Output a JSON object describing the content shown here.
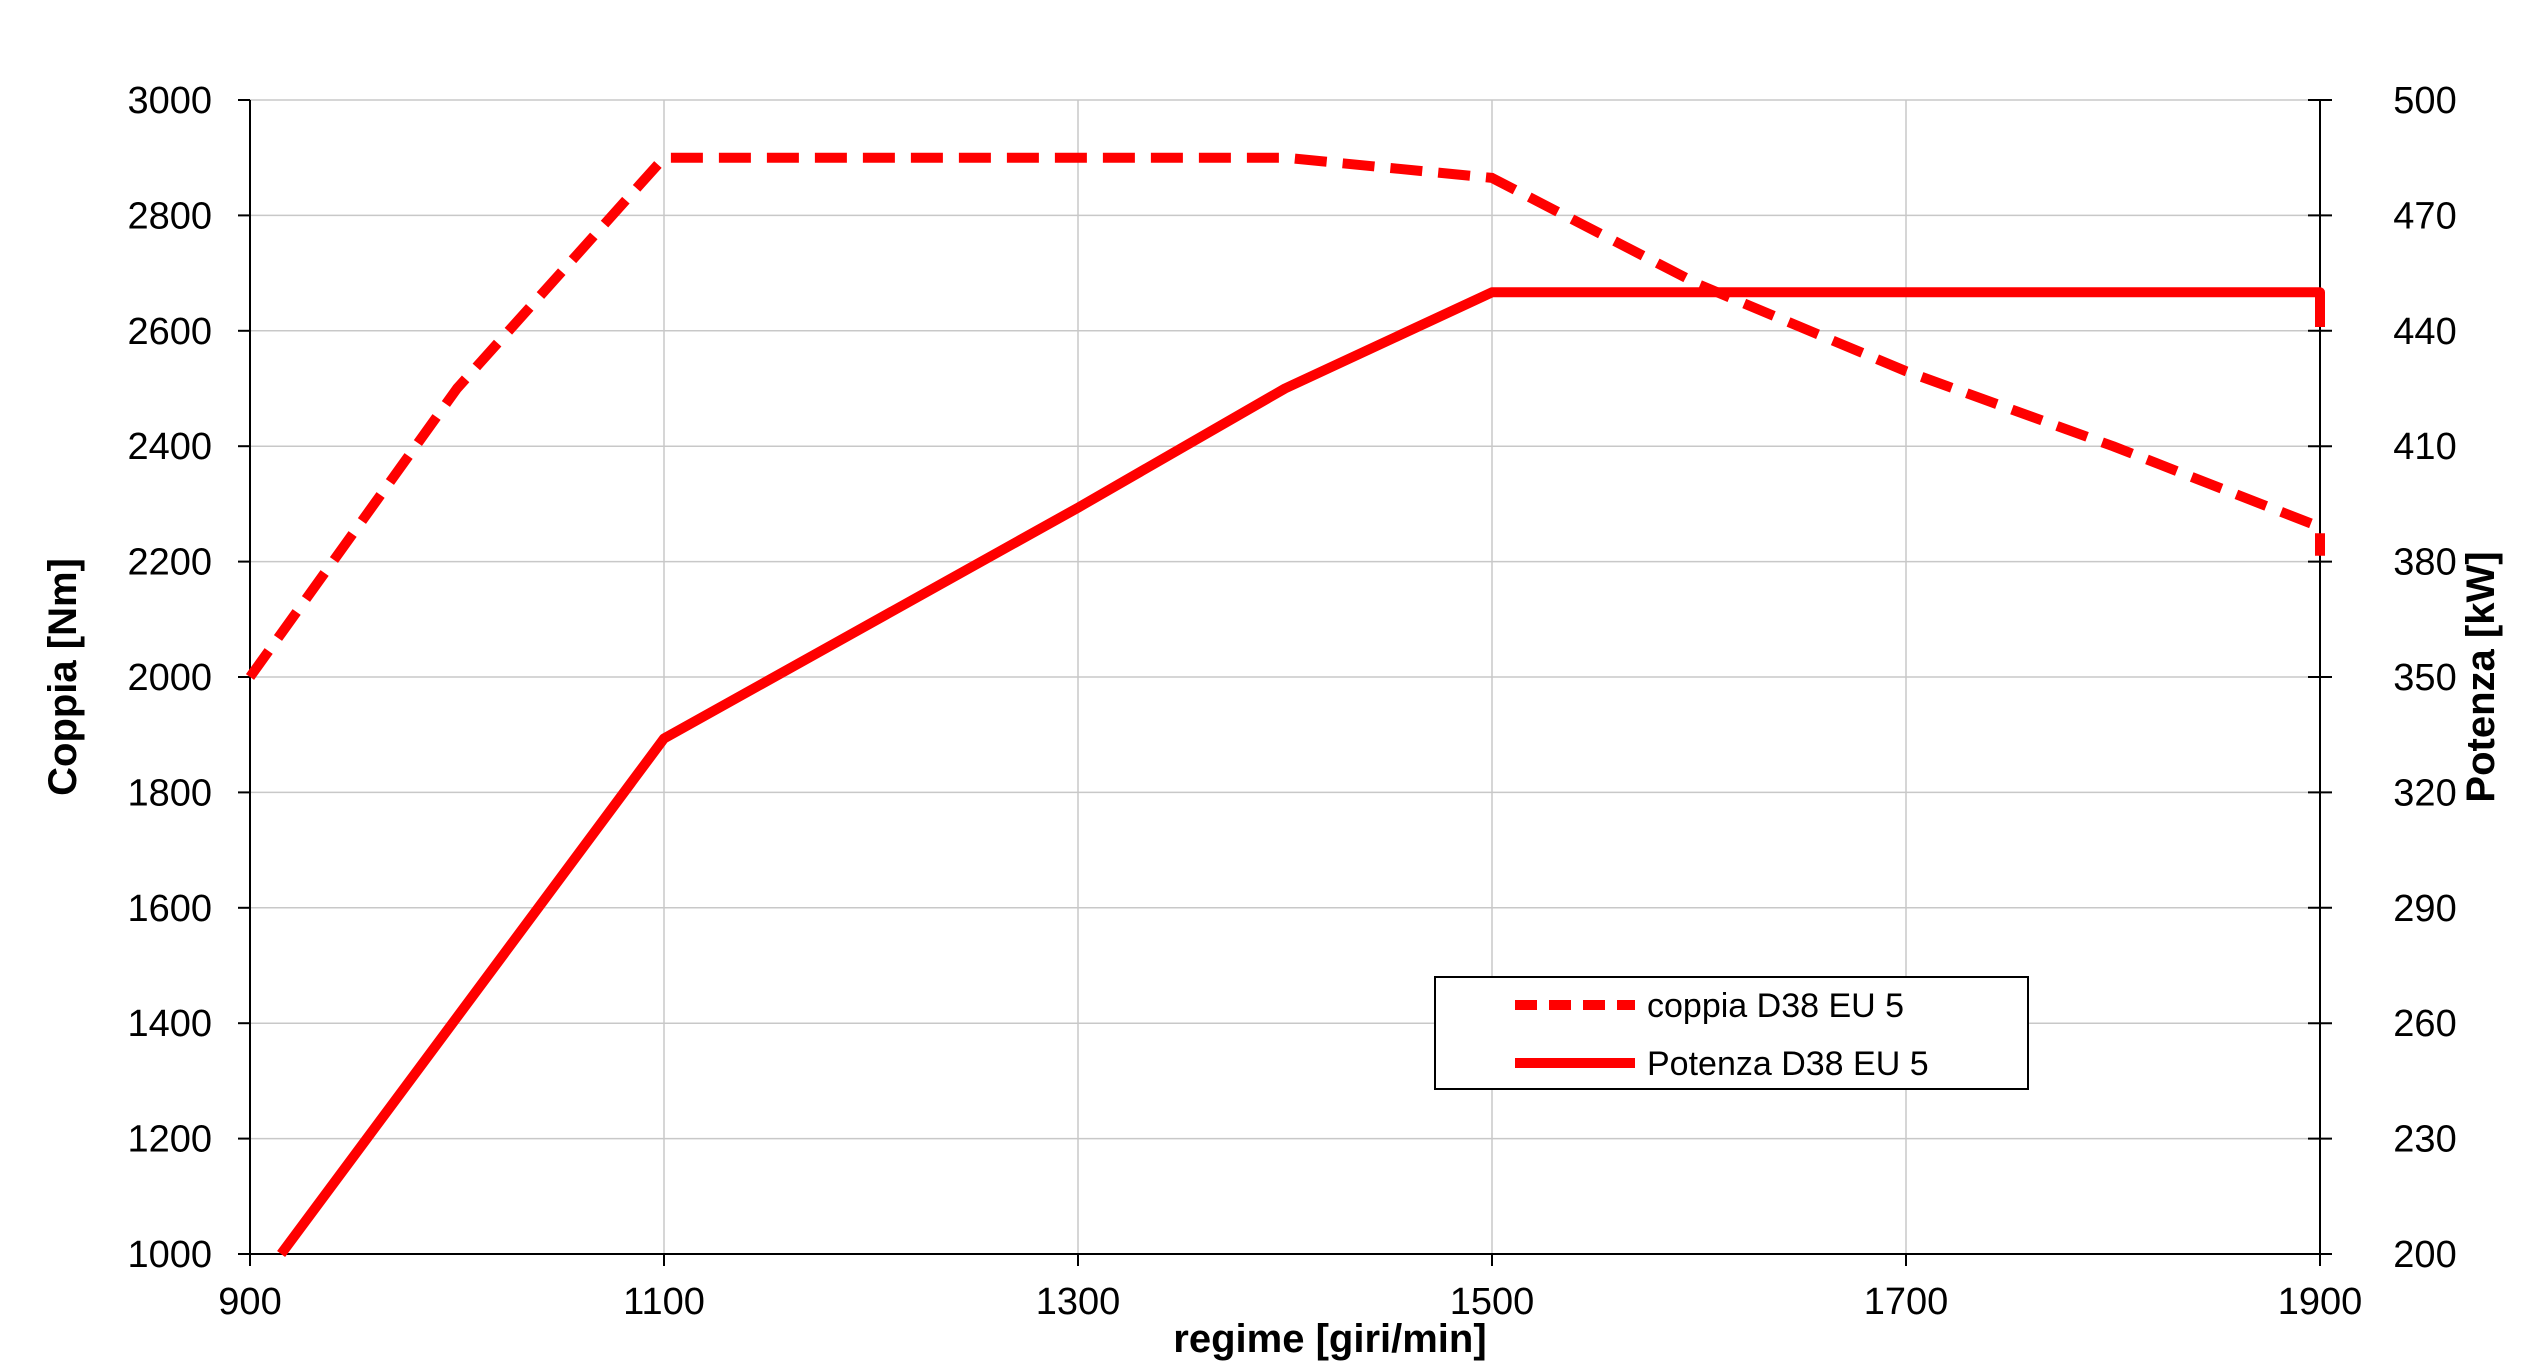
{
  "chart_data": {
    "type": "line",
    "xlabel": "regime [giri/min]",
    "ylabel_left": "Coppia [Nm]",
    "ylabel_right": "Potenza [kW]",
    "x_ticks": [
      900,
      1100,
      1300,
      1500,
      1700,
      1900
    ],
    "y_left_ticks": [
      1000,
      1200,
      1400,
      1600,
      1800,
      2000,
      2200,
      2400,
      2600,
      2800,
      3000
    ],
    "y_right_ticks": [
      200,
      230,
      260,
      290,
      320,
      350,
      380,
      410,
      440,
      470,
      500
    ],
    "xlim": [
      900,
      1900
    ],
    "ylim_left": [
      1000,
      3000
    ],
    "ylim_right": [
      200,
      500
    ],
    "grid": true,
    "legend_position": "lower-right",
    "series": [
      {
        "name": "coppia D38 EU 5",
        "axis": "left",
        "style": "dashed",
        "color": "#ff0000",
        "points": [
          [
            900,
            2000
          ],
          [
            1000,
            2500
          ],
          [
            1100,
            2900
          ],
          [
            1400,
            2900
          ],
          [
            1500,
            2865
          ],
          [
            1600,
            2680
          ],
          [
            1700,
            2530
          ],
          [
            1800,
            2400
          ],
          [
            1900,
            2260
          ],
          [
            1900,
            2210
          ]
        ]
      },
      {
        "name": "Potenza D38 EU 5",
        "axis": "right",
        "style": "solid",
        "color": "#ff0000",
        "points": [
          [
            915,
            200
          ],
          [
            1100,
            334
          ],
          [
            1300,
            394
          ],
          [
            1400,
            425
          ],
          [
            1500,
            450
          ],
          [
            1900,
            450
          ],
          [
            1900,
            441
          ]
        ]
      }
    ]
  }
}
